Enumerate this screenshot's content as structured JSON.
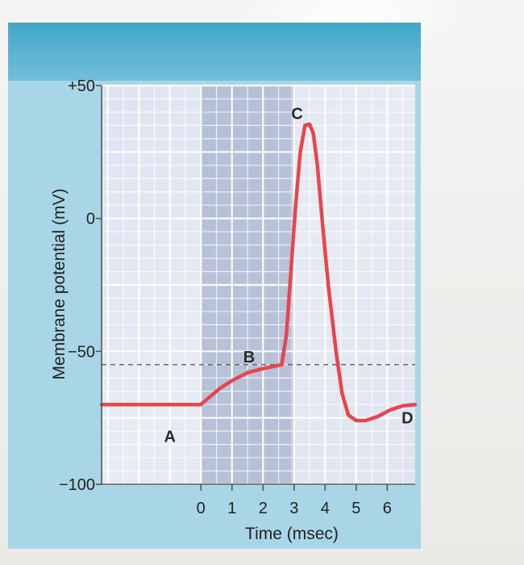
{
  "chart_data": {
    "type": "line",
    "xlabel": "Time (msec)",
    "ylabel": "Membrane potential (mV)",
    "x_ticks": [
      "0",
      "1",
      "2",
      "3",
      "4",
      "5",
      "6"
    ],
    "y_ticks": [
      "+50",
      "0",
      "−50",
      "−100"
    ],
    "y_tick_values": [
      50,
      0,
      -50,
      -100
    ],
    "x_tick_values": [
      0,
      1,
      2,
      3,
      4,
      5,
      6
    ],
    "xlim": [
      -3.2,
      6.9
    ],
    "ylim": [
      -100,
      50
    ],
    "grid": true,
    "threshold_mv": -55,
    "shaded_x_ranges": [
      [
        0,
        3
      ],
      [
        0,
        2.9
      ]
    ],
    "series": [
      {
        "color": "#e8454d",
        "points": [
          [
            -3.2,
            -70
          ],
          [
            0,
            -70
          ],
          [
            0.3,
            -67
          ],
          [
            0.6,
            -64
          ],
          [
            1.0,
            -61
          ],
          [
            1.5,
            -58
          ],
          [
            2.0,
            -56.5
          ],
          [
            2.6,
            -55
          ],
          [
            2.75,
            -44
          ],
          [
            2.9,
            -20
          ],
          [
            3.05,
            5
          ],
          [
            3.2,
            25
          ],
          [
            3.35,
            35
          ],
          [
            3.5,
            35.5
          ],
          [
            3.62,
            32
          ],
          [
            3.75,
            20
          ],
          [
            3.9,
            0
          ],
          [
            4.1,
            -25
          ],
          [
            4.35,
            -50
          ],
          [
            4.55,
            -66
          ],
          [
            4.75,
            -74
          ],
          [
            5.0,
            -76
          ],
          [
            5.3,
            -76
          ],
          [
            5.7,
            -74.5
          ],
          [
            6.1,
            -72
          ],
          [
            6.5,
            -70.5
          ],
          [
            6.9,
            -70
          ]
        ]
      }
    ],
    "annotations": [
      {
        "text": "A",
        "x": -1.0,
        "y": -82
      },
      {
        "text": "B",
        "x": 1.55,
        "y": -52
      },
      {
        "text": "C",
        "x": 3.1,
        "y": 39.5
      },
      {
        "text": "D",
        "x": 6.65,
        "y": -75
      }
    ]
  }
}
